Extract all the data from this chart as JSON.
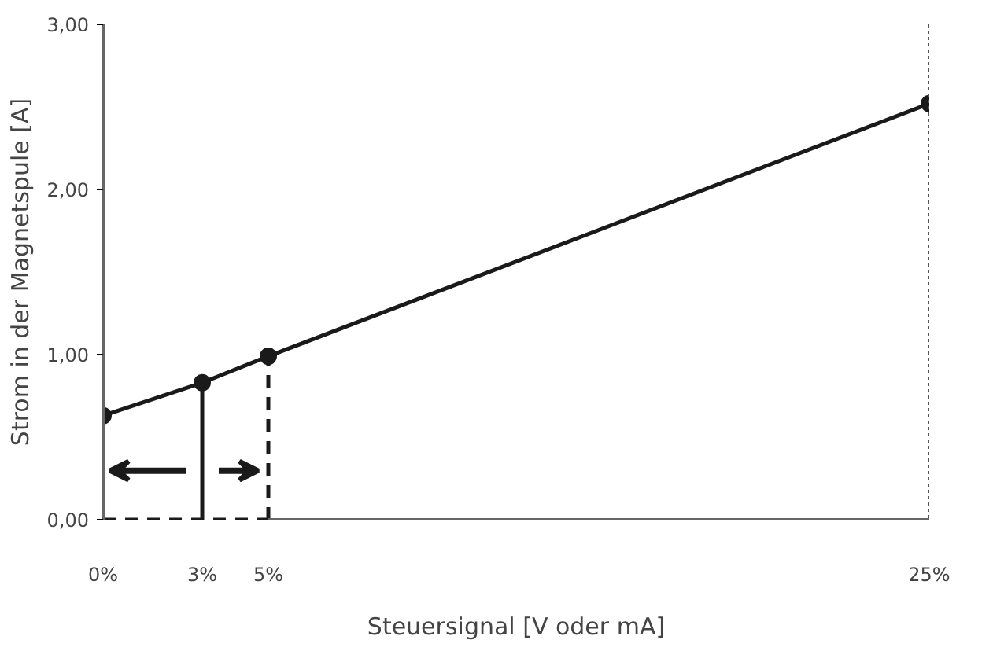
{
  "chart_data": {
    "type": "line",
    "xlabel": "Steuersignal [V oder mA]",
    "ylabel": "Strom in der Magnetspule [A]",
    "xlim": [
      0,
      25
    ],
    "xticks": [
      {
        "value": 0,
        "label": "0%"
      },
      {
        "value": 3,
        "label": "3%"
      },
      {
        "value": 5,
        "label": "5%"
      },
      {
        "value": 25,
        "label": "25%"
      }
    ],
    "ylim": [
      0,
      3
    ],
    "yticks": [
      {
        "value": 0,
        "label": "0,00"
      },
      {
        "value": 1,
        "label": "1,00"
      },
      {
        "value": 2,
        "label": "2,00"
      },
      {
        "value": 3,
        "label": "3,00"
      }
    ],
    "grid": false,
    "marker": "circle",
    "line_style": "solid",
    "series": [
      {
        "color": "#1a1a1a",
        "x": [
          0,
          3,
          5,
          25
        ],
        "values": [
          0.63,
          0.83,
          0.99,
          2.52
        ]
      },
      {
        "color": "#1a1a1a",
        "x": [
          3,
          3
        ],
        "values": [
          0,
          0.83
        ],
        "marker": "none"
      },
      {
        "color": "#1a1a1a",
        "x": [
          5,
          5
        ],
        "values": [
          0,
          0.99
        ],
        "marker": "none",
        "line_style": "dashed"
      },
      {
        "color": "#1a1a1a",
        "x": [
          0,
          5
        ],
        "values": [
          0,
          0
        ],
        "marker": "none",
        "line_style": "dashed"
      }
    ],
    "ref_lines": [
      {
        "axis": "x",
        "value": 25,
        "line_style": "dotted",
        "color": "#555555"
      }
    ]
  }
}
